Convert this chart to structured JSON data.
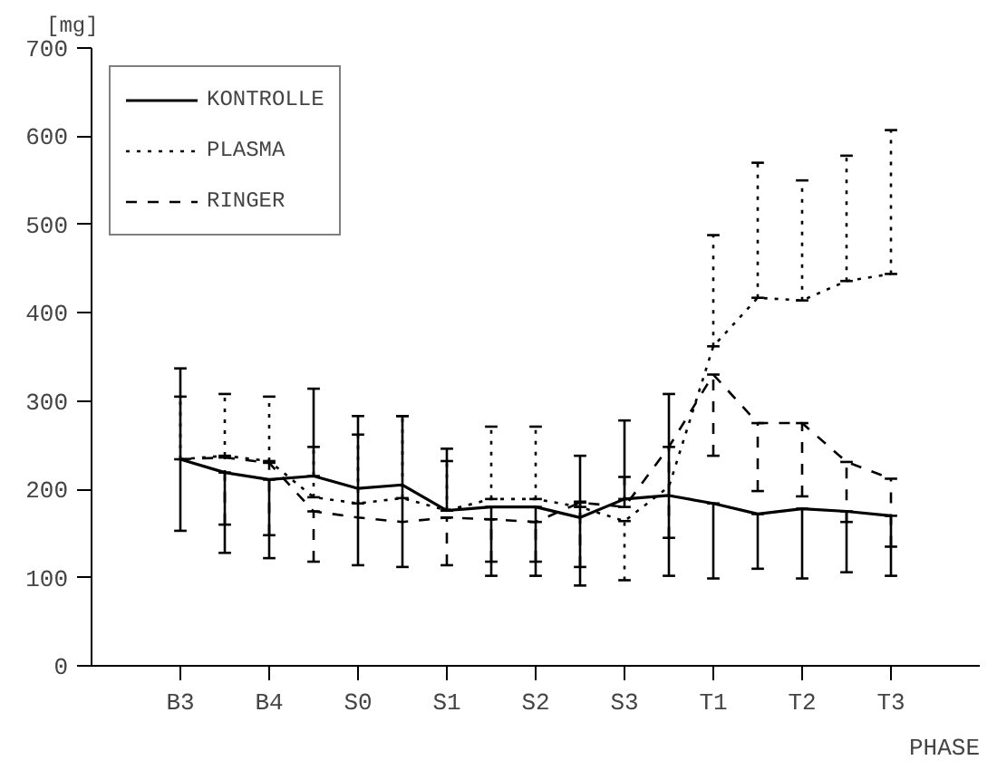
{
  "chart_data": {
    "type": "line",
    "ylabel": "[mg]",
    "xlabel": "PHASE",
    "categories": [
      "B3",
      null,
      "B4",
      null,
      "S0",
      null,
      "S1",
      null,
      "S2",
      null,
      "S3",
      null,
      "T1",
      null,
      "T2",
      null,
      "T3"
    ],
    "ylim": [
      0,
      700
    ],
    "yticks": [
      0,
      100,
      200,
      300,
      400,
      500,
      600,
      700
    ],
    "grid": false,
    "legend": "top left",
    "series": [
      {
        "name": "KONTROLLE",
        "color": "#000000",
        "line_style": "solid",
        "values": [
          234,
          219,
          211,
          215,
          201,
          205,
          176,
          180,
          180,
          168,
          189,
          193,
          184,
          172,
          178,
          175,
          170
        ],
        "errors": [
          [
            153,
            337
          ],
          [
            128,
            219
          ],
          [
            122,
            211
          ],
          [
            215,
            314
          ],
          [
            114,
            283
          ],
          [
            112,
            283
          ],
          [
            176,
            246
          ],
          [
            102,
            180
          ],
          [
            102,
            180
          ],
          [
            91,
            238
          ],
          [
            189,
            278
          ],
          [
            102,
            308
          ],
          [
            99,
            184
          ],
          [
            110,
            172
          ],
          [
            99,
            178
          ],
          [
            106,
            175
          ],
          [
            102,
            170
          ]
        ]
      },
      {
        "name": "PLASMA",
        "color": "#000000",
        "line_style": "dotted",
        "values": [
          234,
          238,
          232,
          191,
          184,
          190,
          176,
          189,
          189,
          180,
          164,
          203,
          362,
          417,
          414,
          436,
          444
        ],
        "errors": [
          [
            234,
            305
          ],
          [
            238,
            308
          ],
          [
            232,
            305
          ],
          [
            191,
            248
          ],
          [
            184,
            262
          ],
          [
            190,
            283
          ],
          [
            176,
            232
          ],
          [
            189,
            271
          ],
          [
            189,
            271
          ],
          [
            180,
            186
          ],
          [
            97,
            164
          ],
          null,
          [
            362,
            488
          ],
          [
            417,
            570
          ],
          [
            414,
            550
          ],
          [
            436,
            578
          ],
          [
            444,
            607
          ]
        ]
      },
      {
        "name": "RINGER",
        "color": "#000000",
        "line_style": "dashed",
        "values": [
          234,
          236,
          230,
          175,
          168,
          163,
          168,
          166,
          163,
          185,
          180,
          248,
          330,
          275,
          275,
          231,
          212
        ],
        "errors": [
          null,
          [
            160,
            236
          ],
          [
            148,
            230
          ],
          [
            118,
            175
          ],
          null,
          null,
          [
            114,
            168
          ],
          [
            118,
            166
          ],
          [
            118,
            163
          ],
          [
            112,
            185
          ],
          [
            180,
            214
          ],
          [
            145,
            248
          ],
          [
            238,
            330
          ],
          [
            198,
            275
          ],
          [
            192,
            275
          ],
          [
            163,
            231
          ],
          [
            135,
            212
          ]
        ]
      }
    ]
  }
}
